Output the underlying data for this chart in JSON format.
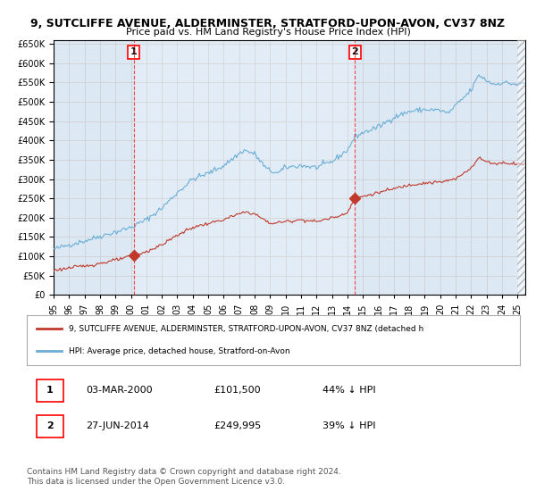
{
  "title": "9, SUTCLIFFE AVENUE, ALDERMINSTER, STRATFORD-UPON-AVON, CV37 8NZ",
  "subtitle": "Price paid vs. HM Land Registry's House Price Index (HPI)",
  "legend_line1": "9, SUTCLIFFE AVENUE, ALDERMINSTER, STRATFORD-UPON-AVON, CV37 8NZ (detached h",
  "legend_line2": "HPI: Average price, detached house, Stratford-on-Avon",
  "table_row1": [
    "1",
    "03-MAR-2000",
    "£101,500",
    "44% ↓ HPI"
  ],
  "table_row2": [
    "2",
    "27-JUN-2014",
    "£249,995",
    "39% ↓ HPI"
  ],
  "footnote1": "Contains HM Land Registry data © Crown copyright and database right 2024.",
  "footnote2": "This data is licensed under the Open Government Licence v3.0.",
  "hpi_color": "#6baed6",
  "price_color": "#c0392b",
  "bg_color": "#dce9f5",
  "plot_bg": "#ffffff",
  "grid_color": "#cccccc",
  "ylim": [
    0,
    660000
  ],
  "yticks": [
    0,
    50000,
    100000,
    150000,
    200000,
    250000,
    300000,
    350000,
    400000,
    450000,
    500000,
    550000,
    600000,
    650000
  ],
  "event1_year": 2000.17,
  "event1_price": 101500,
  "event2_year": 2014.49,
  "event2_price": 249995,
  "xmin": 1995.0,
  "xmax": 2025.5
}
